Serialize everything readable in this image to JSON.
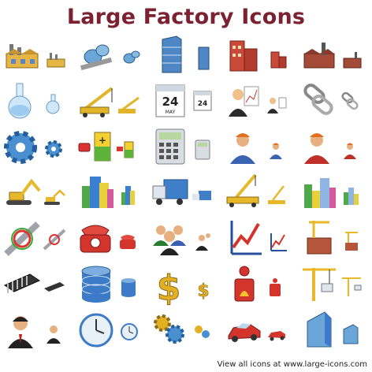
{
  "title": "Large Factory Icons",
  "footer": "View all icons at www.large-icons.com",
  "calendar": {
    "day": "24",
    "month": "MAY"
  },
  "rows": [
    [
      "factory-icon",
      "pipeline-tanks-icon",
      "office-building-icon",
      "brick-building-icon",
      "plant-icon"
    ],
    [
      "flask-icon",
      "crane-truck-icon",
      "calendar-icon",
      "manager-chart-icon",
      "chain-link-icon"
    ],
    [
      "gear-icon",
      "battery-plug-icon",
      "calculator-icon",
      "worker-blue-icon",
      "worker-red-icon"
    ],
    [
      "excavator-icon",
      "city-buildings-icon",
      "truck-icon",
      "mobile-crane-icon",
      "skyline-bars-icon"
    ],
    [
      "pipe-fitting-icon",
      "telephone-icon",
      "team-icon",
      "line-chart-icon",
      "construction-site-icon"
    ],
    [
      "microchip-icon",
      "database-icon",
      "dollar-icon",
      "fire-extinguisher-icon",
      "tower-crane-icon"
    ],
    [
      "businessman-icon",
      "clock-icon",
      "gears-icon",
      "car-icon",
      "glass-building-icon"
    ]
  ]
}
